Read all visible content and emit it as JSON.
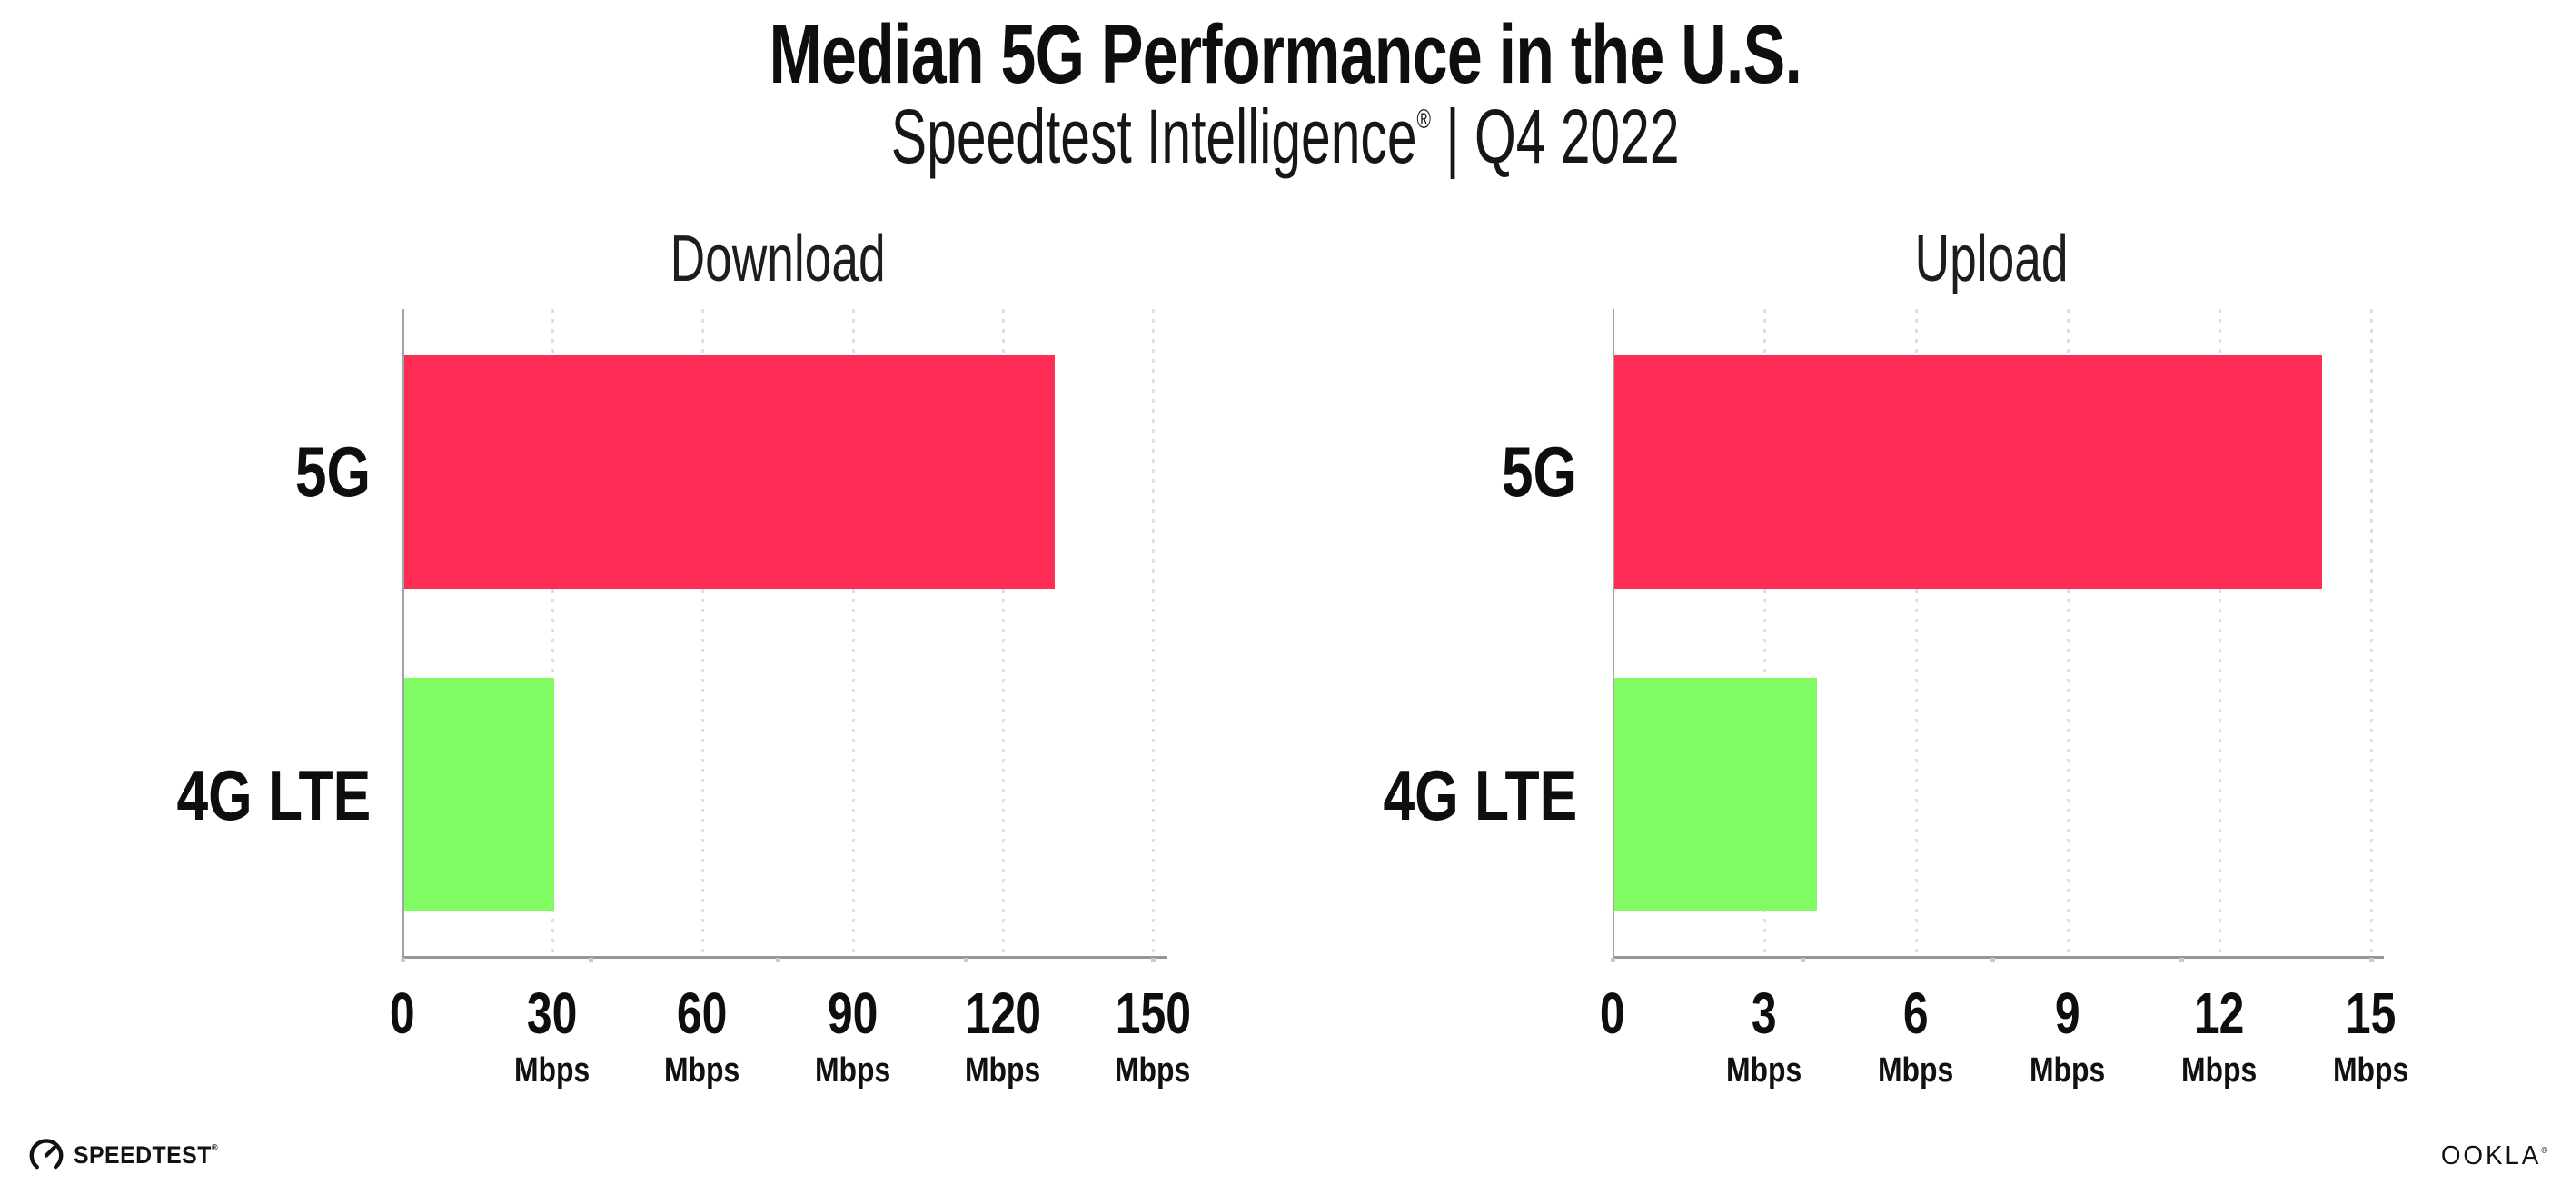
{
  "header": {
    "title": "Median 5G Performance in the U.S.",
    "subtitle_brand": "Speedtest Intelligence",
    "subtitle_reg": "®",
    "subtitle_rest": " | Q4 2022"
  },
  "chart_data": [
    {
      "type": "bar",
      "orientation": "horizontal",
      "title": "Download",
      "categories": [
        "5G",
        "4G LTE"
      ],
      "values": [
        130,
        30
      ],
      "unit": "Mbps",
      "xlim": [
        0,
        150
      ],
      "xticks": [
        0,
        30,
        60,
        90,
        120,
        150
      ],
      "xtick_labels": [
        {
          "v": "0",
          "u": ""
        },
        {
          "v": "30",
          "u": "Mbps"
        },
        {
          "v": "60",
          "u": "Mbps"
        },
        {
          "v": "90",
          "u": "Mbps"
        },
        {
          "v": "120",
          "u": "Mbps"
        },
        {
          "v": "150",
          "u": "Mbps"
        }
      ],
      "bar_colors": [
        "#ff2d55",
        "#80fb64"
      ],
      "grid": "dotted-vertical-at-ticks",
      "legend": "none"
    },
    {
      "type": "bar",
      "orientation": "horizontal",
      "title": "Upload",
      "categories": [
        "5G",
        "4G LTE"
      ],
      "values": [
        14,
        4
      ],
      "unit": "Mbps",
      "xlim": [
        0,
        15
      ],
      "xticks": [
        0,
        3,
        6,
        9,
        12,
        15
      ],
      "xtick_labels": [
        {
          "v": "0",
          "u": ""
        },
        {
          "v": "3",
          "u": "Mbps"
        },
        {
          "v": "6",
          "u": "Mbps"
        },
        {
          "v": "9",
          "u": "Mbps"
        },
        {
          "v": "12",
          "u": "Mbps"
        },
        {
          "v": "15",
          "u": "Mbps"
        }
      ],
      "bar_colors": [
        "#ff2d55",
        "#80fb64"
      ],
      "grid": "dotted-vertical-at-ticks",
      "legend": "none"
    }
  ],
  "colors": {
    "bar_5g": "#ff2d55",
    "bar_4g": "#80fb64",
    "axis": "#96969c",
    "gridline": "#dedee8",
    "text": "#0e0e0e"
  },
  "footer": {
    "speedtest_label": "SPEEDTEST",
    "speedtest_mark": "®",
    "ookla_label": "OOKLA",
    "ookla_mark": "®"
  }
}
